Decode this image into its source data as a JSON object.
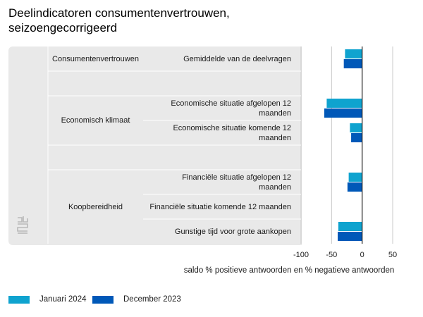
{
  "title": "Deelindicatoren consumentenvertrouwen, seizoengecorrigeerd",
  "colors": {
    "jan2024": "#0fa3cf",
    "dec2023": "#0058b8",
    "panel": "#e9e9e9",
    "grid": "#c8c8c8"
  },
  "categories": [
    {
      "label": "Consumentenvertrouwen"
    },
    {
      "label": "Economisch klimaat"
    },
    {
      "label": "Koopbereidheid"
    }
  ],
  "rows": [
    {
      "label": "Gemiddelde van de deelvragen"
    },
    {
      "label": ""
    },
    {
      "label": "Economische situatie afgelopen 12 maanden"
    },
    {
      "label": "Economische situatie komende 12 maanden"
    },
    {
      "label": ""
    },
    {
      "label": "Financiële situatie afgelopen 12 maanden"
    },
    {
      "label": "Financiële situatie komende 12 maanden"
    },
    {
      "label": "Gunstige tijd voor grote aankopen"
    }
  ],
  "chart_data": {
    "type": "bar",
    "orientation": "horizontal",
    "categories": [
      "Gemiddelde van de deelvragen",
      "",
      "Economische situatie afgelopen 12 maanden",
      "Economische situatie komende 12 maanden",
      "",
      "Financiële situatie afgelopen 12 maanden",
      "Financiële situatie komende 12 maanden",
      "Gunstige tijd voor grote aankopen"
    ],
    "series": [
      {
        "name": "Januari 2024",
        "values": [
          -28,
          null,
          -58,
          -20,
          null,
          -22,
          null,
          -39
        ]
      },
      {
        "name": "December 2023",
        "values": [
          -30,
          null,
          -62,
          -18,
          null,
          -24,
          null,
          -40
        ]
      }
    ],
    "xlabel": "saldo % positieve antwoorden en % negatieve antwoorden",
    "xlim": [
      -100,
      50
    ],
    "xticks": [
      -100,
      -50,
      0,
      50
    ],
    "xtick_labels": [
      "-100",
      "-50",
      "0",
      "50"
    ],
    "legend_position": "bottom-left"
  }
}
